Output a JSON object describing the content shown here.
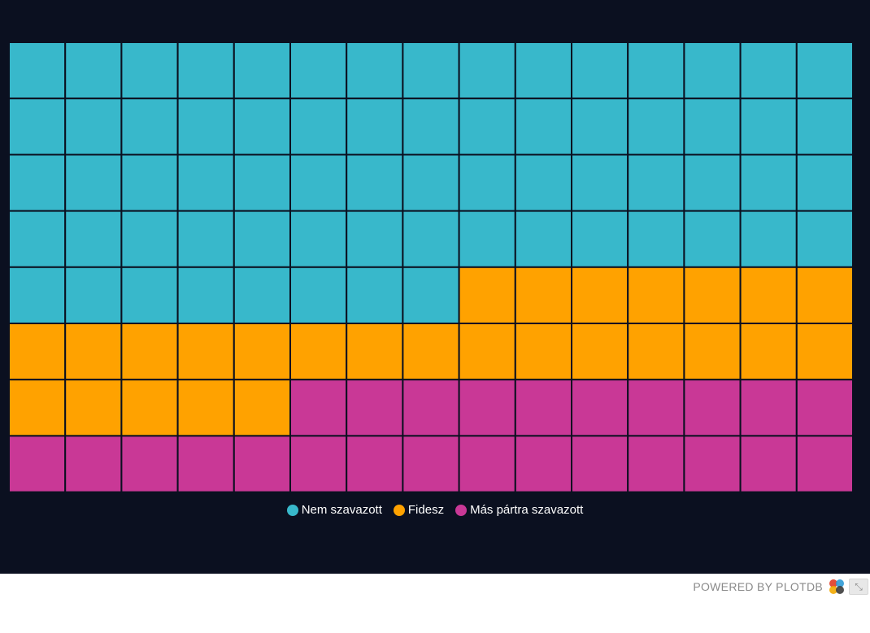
{
  "chart_data": {
    "type": "waffle",
    "grid": {
      "columns": 15,
      "rows": 8
    },
    "series": [
      {
        "name": "Nem szavazott",
        "units": 68,
        "color": "#38b8cb"
      },
      {
        "name": "Fidesz",
        "units": 27,
        "color": "#ffa200"
      },
      {
        "name": "Más pártra szavazott",
        "units": 25,
        "color": "#c93896"
      }
    ],
    "background": "#0b1020",
    "legend_position": "bottom-center"
  },
  "footer": {
    "powered_by": "POWERED BY PLOTDB",
    "expand_icon": "⤡"
  }
}
